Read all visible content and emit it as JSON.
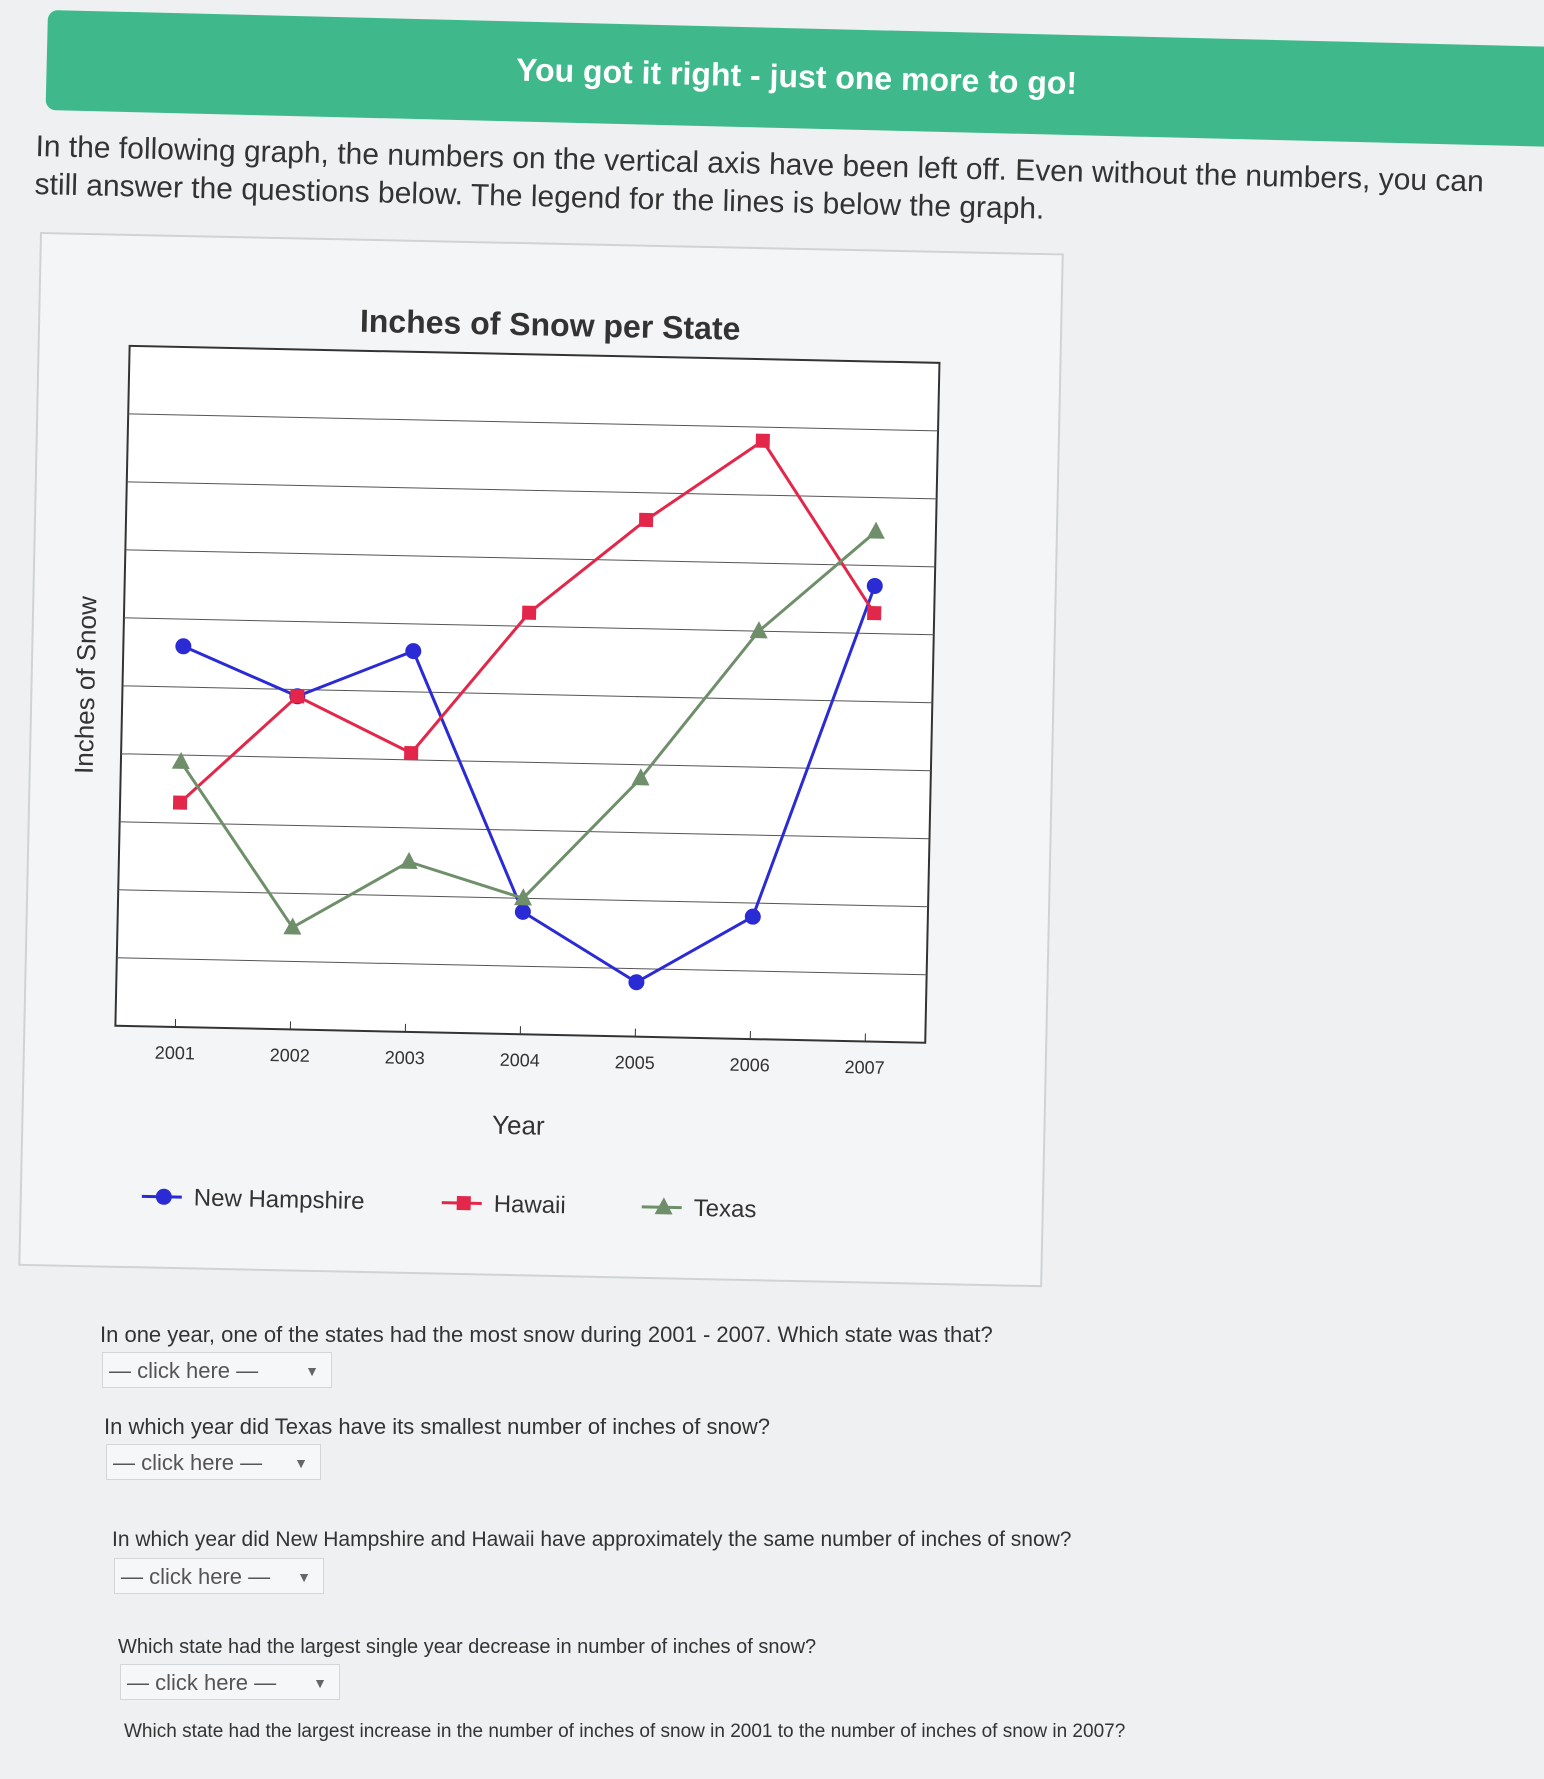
{
  "banner": {
    "text": "You got it right - just one more to go!",
    "color": "#3fb98c"
  },
  "intro": "In the following graph, the numbers on the vertical axis have been left off. Even without the numbers, you can still answer the questions below. The legend for the lines is below the graph.",
  "chart_data": {
    "type": "line",
    "title": "Inches of Snow per State",
    "xlabel": "Year",
    "ylabel": "Inches of Snow",
    "categories": [
      "2001",
      "2002",
      "2003",
      "2004",
      "2005",
      "2006",
      "2007"
    ],
    "y_tick_labels_shown": false,
    "ylim": [
      0,
      10
    ],
    "grid": true,
    "legend": "bottom",
    "series": [
      {
        "name": "New Hampshire",
        "color": "#2b2bd6",
        "marker": "circle",
        "values": [
          5.6,
          4.9,
          5.6,
          1.8,
          0.8,
          1.8,
          6.7
        ]
      },
      {
        "name": "Hawaii",
        "color": "#e2274a",
        "marker": "square",
        "values": [
          3.3,
          4.9,
          4.1,
          6.2,
          7.6,
          8.8,
          6.3
        ]
      },
      {
        "name": "Texas",
        "color": "#6f8f6a",
        "marker": "triangle",
        "values": [
          3.9,
          1.5,
          2.5,
          2.0,
          3.8,
          6.0,
          7.5
        ]
      }
    ]
  },
  "questions": [
    {
      "text": "In one year, one of the states had the most snow during 2001 - 2007. Which state was that?",
      "select": "— click here —"
    },
    {
      "text": "In which year did Texas have its smallest number of inches of snow?",
      "select": "— click here —"
    },
    {
      "text": "In which year did New Hampshire and Hawaii have approximately the same number of inches of snow?",
      "select": "— click here —"
    },
    {
      "text": "Which state had the largest single year decrease in number of inches of snow?",
      "select": "— click here —"
    },
    {
      "text": "Which state had the largest increase in the number of inches of snow in 2001 to the number of inches of snow in 2007?"
    }
  ]
}
